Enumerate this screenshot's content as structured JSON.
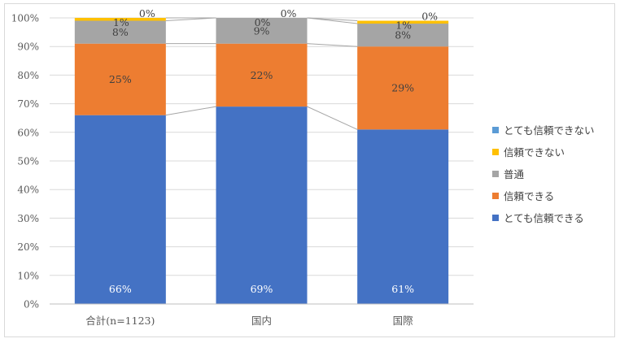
{
  "chart_data": {
    "type": "bar",
    "stacked": true,
    "percent": true,
    "categories": [
      "合計(n=1123)",
      "国内",
      "国際"
    ],
    "series": [
      {
        "name": "とても信頼できる",
        "values": [
          66,
          69,
          61
        ],
        "labels": [
          "66%",
          "69%",
          "61%"
        ],
        "color": "#4472C4"
      },
      {
        "name": "信頼できる",
        "values": [
          25,
          22,
          29
        ],
        "labels": [
          "25%",
          "22%",
          "29%"
        ],
        "color": "#ED7D31"
      },
      {
        "name": "普通",
        "values": [
          8,
          9,
          8
        ],
        "labels": [
          "8%",
          "9%",
          "8%"
        ],
        "color": "#A5A5A5"
      },
      {
        "name": "信頼できない",
        "values": [
          1,
          0,
          1
        ],
        "labels": [
          "1%",
          "0%",
          "1%"
        ],
        "color": "#FFC000"
      },
      {
        "name": "とても信頼できない",
        "values": [
          0,
          0,
          0
        ],
        "labels": [
          "0%",
          "0%",
          "0%"
        ],
        "color": "#5B9BD5"
      }
    ],
    "yticks": [
      "0%",
      "10%",
      "20%",
      "30%",
      "40%",
      "50%",
      "60%",
      "70%",
      "80%",
      "90%",
      "100%"
    ],
    "ylim": [
      0,
      100
    ],
    "grid": true,
    "series_lines": true,
    "legend_position": "right",
    "legend_order": [
      "とても信頼できない",
      "信頼できない",
      "普通",
      "信頼できる",
      "とても信頼できる"
    ]
  }
}
